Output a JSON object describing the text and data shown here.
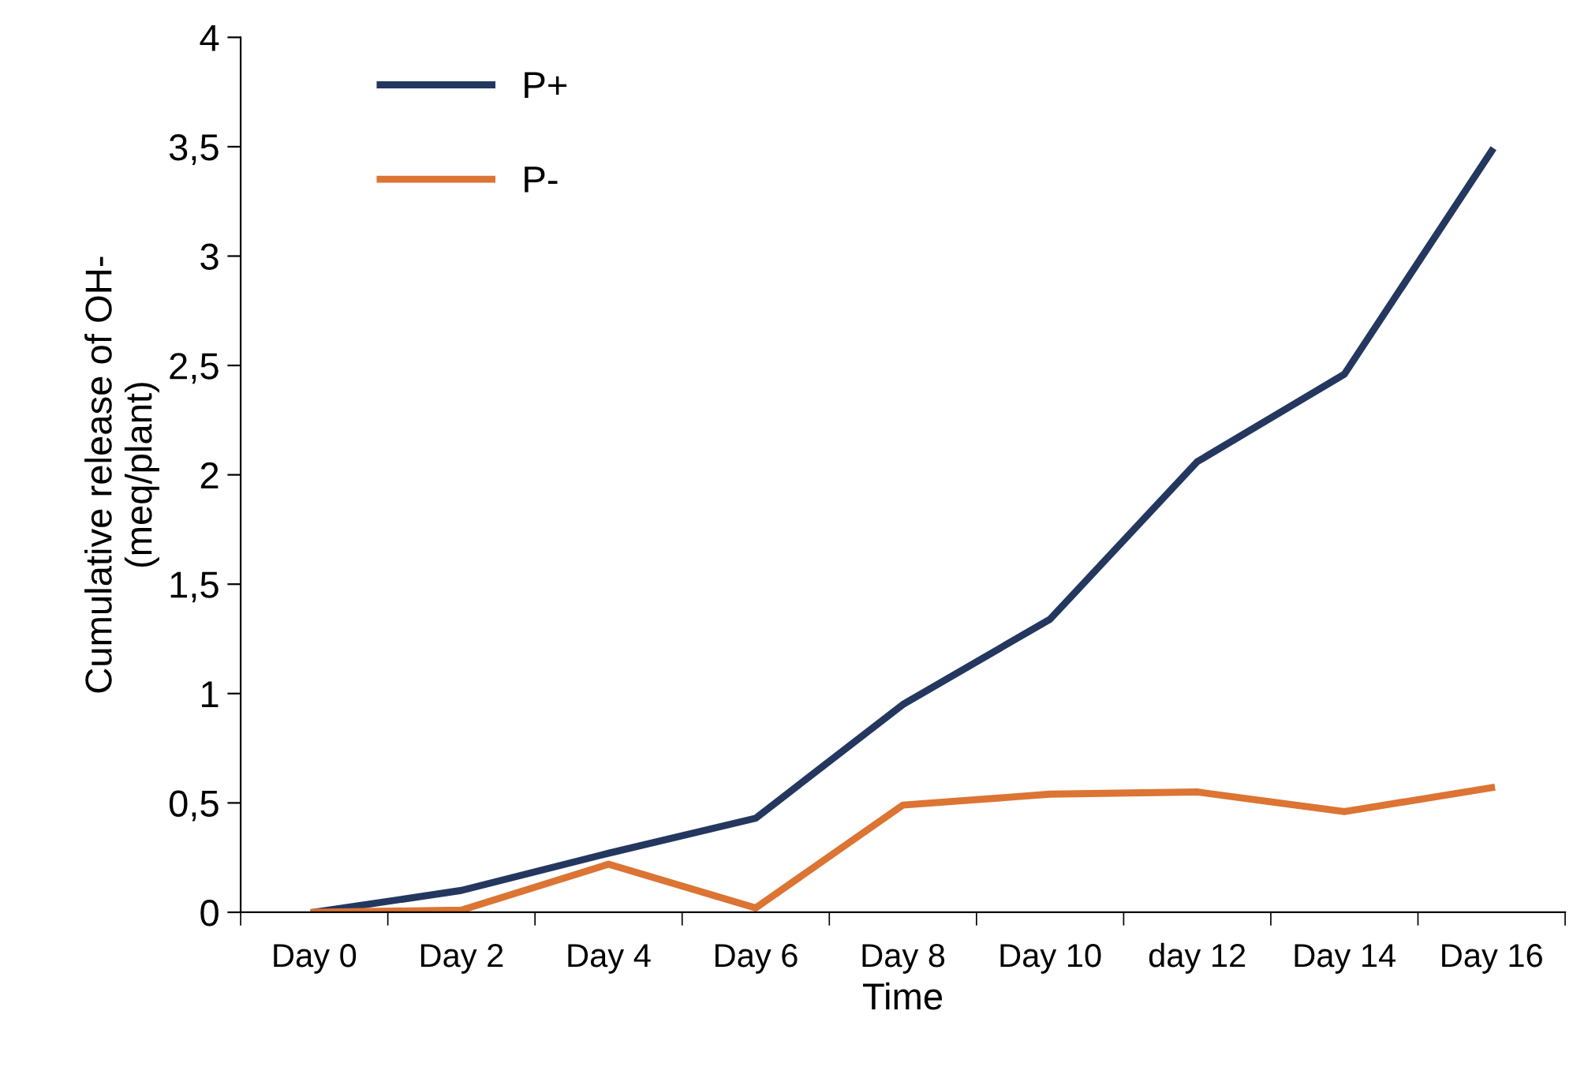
{
  "chart_data": {
    "type": "line",
    "xlabel": "Time",
    "ylabel": "Cumulative release of OH-\n(meq/plant)",
    "categories": [
      "Day 0",
      "Day 2",
      "Day 4",
      "Day 6",
      "Day 8",
      "Day 10",
      "day 12",
      "Day 14",
      "Day 16"
    ],
    "series": [
      {
        "name": "P+",
        "color": "#24375f",
        "values": [
          0,
          0.1,
          0.27,
          0.43,
          0.95,
          1.34,
          2.06,
          2.46,
          3.48
        ]
      },
      {
        "name": "P-",
        "color": "#dc7433",
        "values": [
          0,
          0.01,
          0.22,
          0.02,
          0.49,
          0.54,
          0.55,
          0.46,
          0.57
        ]
      }
    ],
    "ylim": [
      0,
      4
    ],
    "yticks": [
      0,
      {
        "value": 0.5,
        "label": "0,5"
      },
      1,
      {
        "value": 1.5,
        "label": "1,5"
      },
      2,
      {
        "value": 2.5,
        "label": "2,5"
      },
      3,
      {
        "value": 3.5,
        "label": "3,5"
      },
      4
    ],
    "grid": false,
    "legend": "top left",
    "marker": "none",
    "line_style": "solid"
  }
}
